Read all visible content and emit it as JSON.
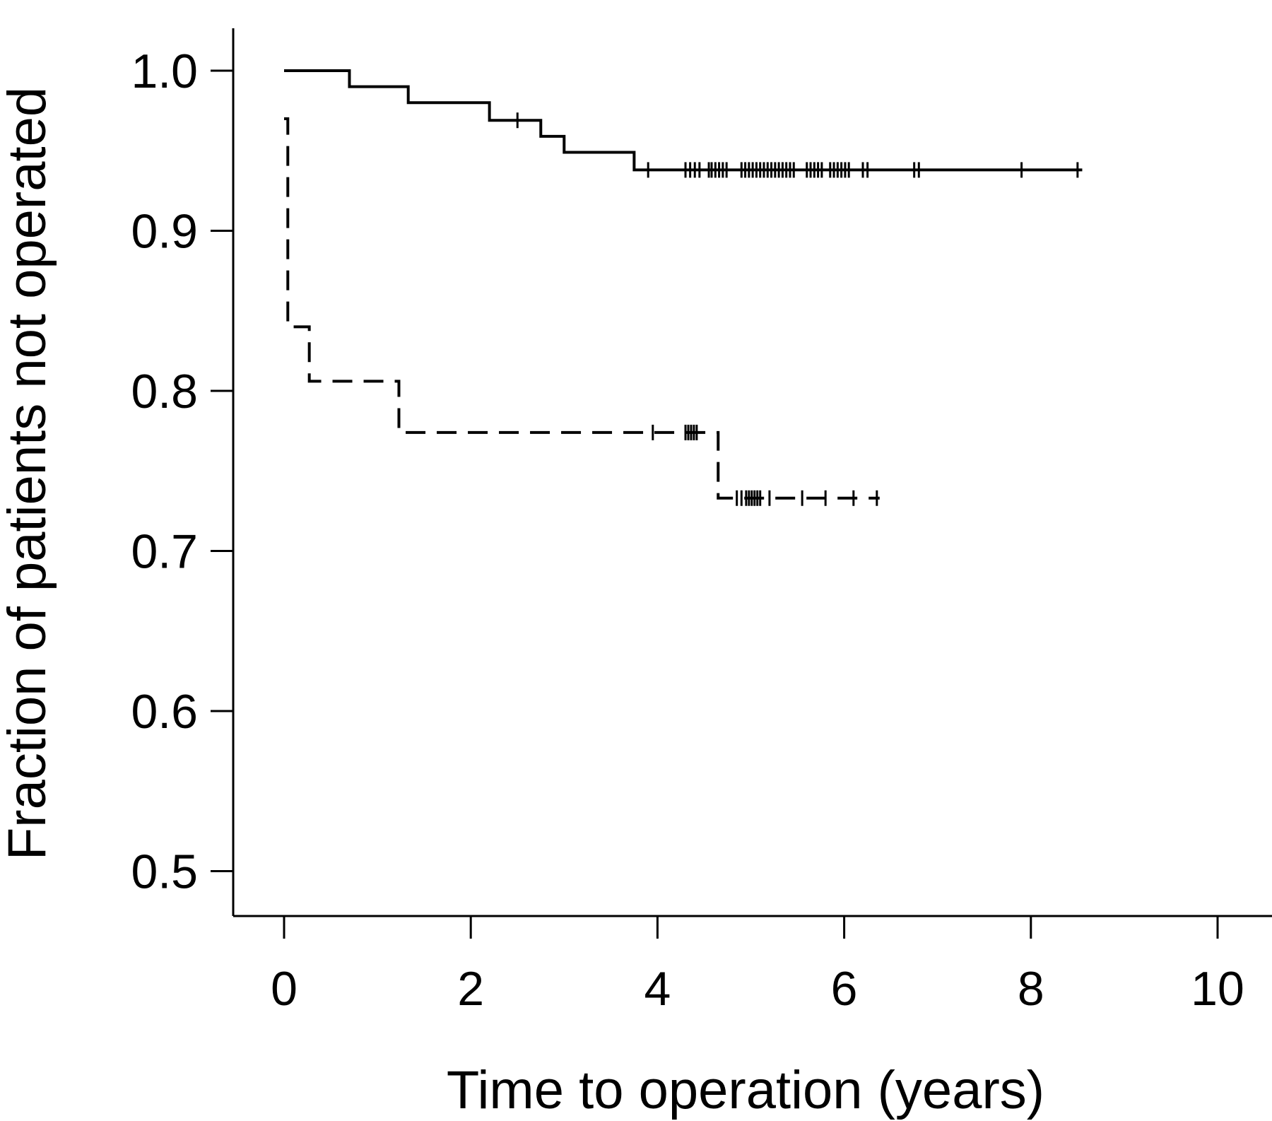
{
  "chart_data": {
    "type": "line",
    "title": "",
    "xlabel": "Time to operation (years)",
    "ylabel": "Fraction of patients not operated",
    "xlim": [
      -0.55,
      10.55
    ],
    "ylim": [
      0.47,
      1.03
    ],
    "xticks": [
      0,
      2,
      4,
      6,
      8,
      10
    ],
    "xtick_labels": [
      "0",
      "2",
      "4",
      "6",
      "8",
      "10"
    ],
    "yticks": [
      0.5,
      0.6,
      0.7,
      0.8,
      0.9,
      1.0
    ],
    "ytick_labels": [
      "0.5",
      "0.6",
      "0.7",
      "0.8",
      "0.9",
      "1.0"
    ],
    "grid": false,
    "legend": "none",
    "series": [
      {
        "line_style": "solid",
        "color": "#000000",
        "steps": [
          [
            0,
            1.0
          ],
          [
            0.7,
            0.99
          ],
          [
            1.33,
            0.98
          ],
          [
            2.2,
            0.969
          ],
          [
            2.75,
            0.959
          ],
          [
            3.0,
            0.949
          ],
          [
            3.75,
            0.938
          ],
          [
            8.55,
            0.938
          ]
        ],
        "censored": [
          2.5,
          3.9,
          4.3,
          4.35,
          4.4,
          4.45,
          4.55,
          4.58,
          4.62,
          4.66,
          4.7,
          4.74,
          4.9,
          4.94,
          4.98,
          5.02,
          5.06,
          5.1,
          5.14,
          5.18,
          5.22,
          5.26,
          5.3,
          5.34,
          5.38,
          5.42,
          5.46,
          5.6,
          5.64,
          5.68,
          5.72,
          5.76,
          5.85,
          5.89,
          5.93,
          5.97,
          6.01,
          6.05,
          6.2,
          6.25,
          6.75,
          6.8,
          7.9,
          8.5
        ]
      },
      {
        "line_style": "dashed",
        "color": "#000000",
        "steps": [
          [
            0,
            0.97
          ],
          [
            0.04,
            0.84
          ],
          [
            0.27,
            0.806
          ],
          [
            1.23,
            0.774
          ],
          [
            4.65,
            0.733
          ],
          [
            6.38,
            0.733
          ]
        ],
        "censored": [
          3.95,
          4.3,
          4.33,
          4.36,
          4.39,
          4.42,
          4.85,
          4.9,
          4.95,
          4.98,
          5.01,
          5.04,
          5.07,
          5.1,
          5.2,
          5.55,
          5.8,
          6.1,
          6.35
        ]
      }
    ]
  }
}
